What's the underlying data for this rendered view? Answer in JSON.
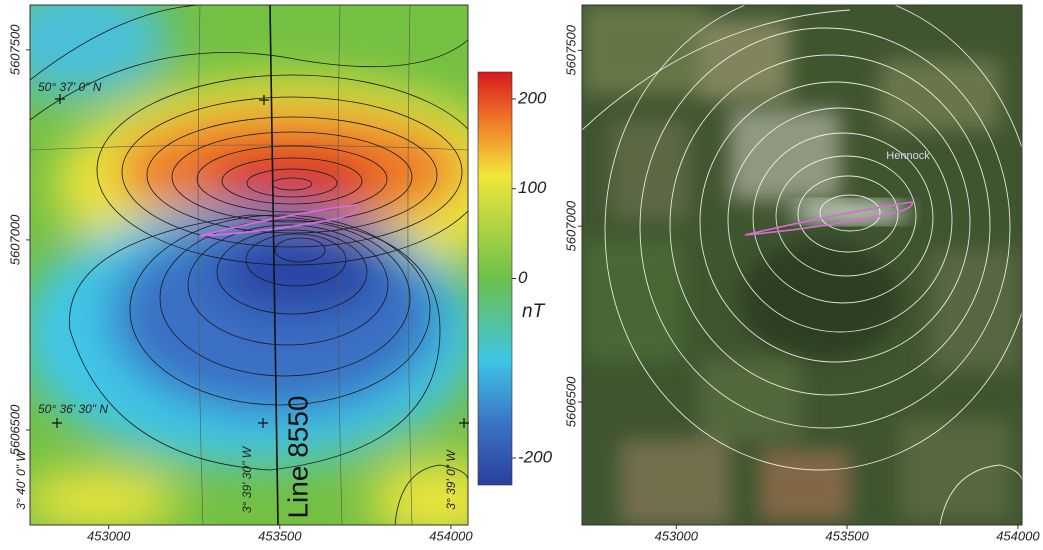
{
  "panels": [
    {
      "type": "magnetic-anomaly",
      "xlim": [
        452770,
        454050
      ],
      "ylim": [
        5606250,
        5607618
      ],
      "xticks": [
        453000,
        453500,
        454000
      ],
      "yticks": [
        5607500,
        5607000,
        5606500
      ],
      "line_label": "Line 8550",
      "graticule_labels": [
        "50° 37' 0\" N",
        "50° 36' 30\" N",
        "3° 40' 0\" W",
        "3° 39' 30\" W",
        "3° 39' 0\" W"
      ]
    },
    {
      "type": "aerial-photo",
      "xlim": [
        452724,
        454012
      ],
      "ylim": [
        5606150,
        5607629
      ],
      "xticks": [
        453000,
        453500,
        454000
      ],
      "yticks": [
        5607500,
        5607000,
        5606500
      ],
      "place_label": "Hennock"
    }
  ],
  "colorbar": {
    "unit": "nT",
    "clim": [
      -230,
      230
    ],
    "ticks": [
      200,
      100,
      0,
      -200
    ]
  }
}
